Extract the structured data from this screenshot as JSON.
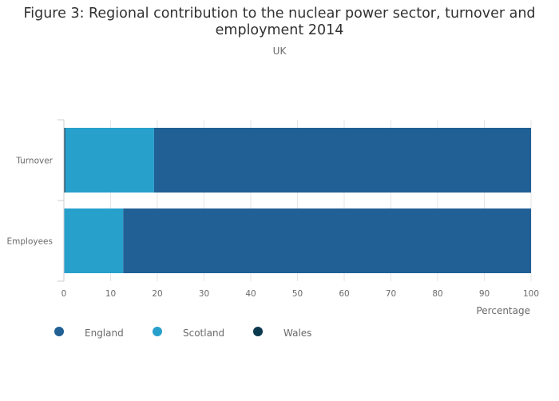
{
  "chart_data": {
    "type": "bar",
    "orientation": "horizontal",
    "stacked": true,
    "title_lines": [
      "Figure 3: Regional contribution to the nuclear power sector, turnover and",
      "employment 2014"
    ],
    "subtitle": "UK",
    "xlabel": "Percentage",
    "ylabel": "",
    "xlim": [
      0,
      100
    ],
    "x_ticks": [
      0,
      10,
      20,
      30,
      40,
      50,
      60,
      70,
      80,
      90,
      100
    ],
    "categories": [
      "Turnover",
      "Employees"
    ],
    "series": [
      {
        "name": "Wales",
        "color": "#0b3950",
        "values": [
          0.3,
          0
        ]
      },
      {
        "name": "Scotland",
        "color": "#27a0cc",
        "values": [
          19,
          12.7
        ]
      },
      {
        "name": "England",
        "color": "#206095",
        "values": [
          80.7,
          87.3
        ]
      }
    ],
    "legend": {
      "position": "bottom-left",
      "order": [
        "England",
        "Scotland",
        "Wales"
      ]
    },
    "grid": true
  }
}
